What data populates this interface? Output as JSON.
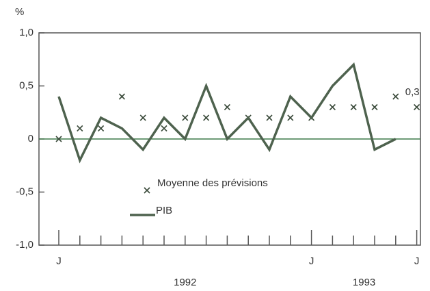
{
  "chart_data": {
    "type": "line",
    "y_unit": "%",
    "categories": [
      "J",
      null,
      null,
      null,
      null,
      null,
      null,
      null,
      null,
      null,
      null,
      null,
      "J",
      null,
      null,
      null,
      null,
      "J"
    ],
    "year_labels": [
      "1992",
      "1993"
    ],
    "series": [
      {
        "name": "Moyenne des prévisions",
        "marker": "x",
        "color": "#3a4a3a",
        "values": [
          0.0,
          0.1,
          0.1,
          0.4,
          0.2,
          0.1,
          0.2,
          0.2,
          0.3,
          0.2,
          0.2,
          0.2,
          0.2,
          0.3,
          0.3,
          0.3,
          0.4,
          0.3
        ]
      },
      {
        "name": "PIB",
        "marker": "line",
        "color": "#4e624e",
        "values": [
          0.4,
          -0.2,
          0.2,
          0.1,
          -0.1,
          0.2,
          0.0,
          0.5,
          0.0,
          0.2,
          -0.1,
          0.4,
          0.2,
          0.5,
          0.7,
          -0.1,
          0.0,
          null
        ]
      }
    ],
    "annotation": "0,3",
    "ylim": [
      -1.0,
      1.0
    ],
    "yticks": [
      {
        "value": -1.0,
        "label": "-1,0"
      },
      {
        "value": -0.5,
        "label": "-0,5"
      },
      {
        "value": 0,
        "label": "0"
      },
      {
        "value": 0.5,
        "label": "0,5"
      },
      {
        "value": 1.0,
        "label": "1,0"
      }
    ],
    "zero_line_color": "#3f7a4a"
  }
}
